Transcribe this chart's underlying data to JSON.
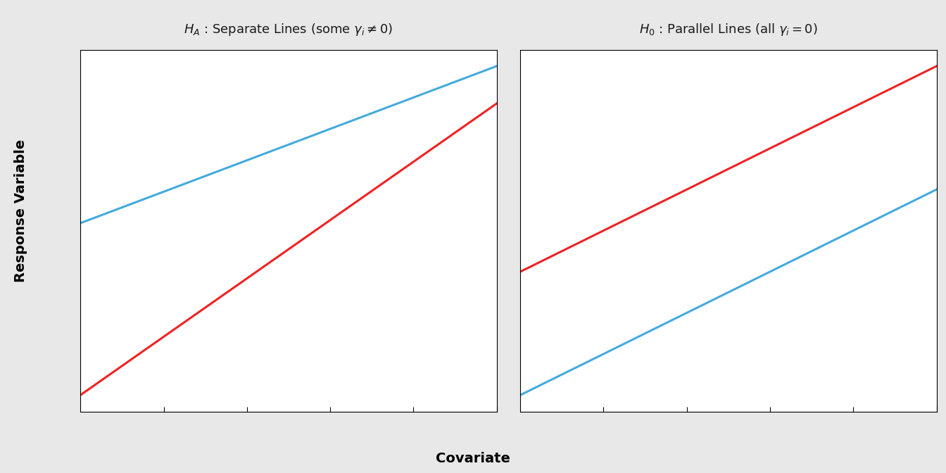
{
  "panel1_title": "$H_A$ : Separate Lines (some $\\gamma_i \\neq 0$)",
  "panel2_title": "$H_0$ : Parallel Lines (all $\\gamma_i = 0$)",
  "xlabel": "Covariate",
  "ylabel": "Response Variable",
  "x_range": [
    0,
    1
  ],
  "panel1_blue_intercept": 0.38,
  "panel1_blue_slope": 0.42,
  "panel1_red_intercept": -0.08,
  "panel1_red_slope": 0.78,
  "panel2_blue_intercept": -0.08,
  "panel2_blue_slope": 0.6,
  "panel2_red_intercept": 0.28,
  "panel2_red_slope": 0.6,
  "line_color_red": "#EE2222",
  "line_color_blue": "#44AADD",
  "line_width": 2.2,
  "panel_bg": "#FFFFFF",
  "strip_bg": "#D4D4D4",
  "strip_text_color": "#1A1A1A",
  "strip_fontsize": 13,
  "axis_label_fontsize": 14,
  "outer_bg": "#E8E8E8",
  "border_color": "#888888",
  "tick_count": 5
}
